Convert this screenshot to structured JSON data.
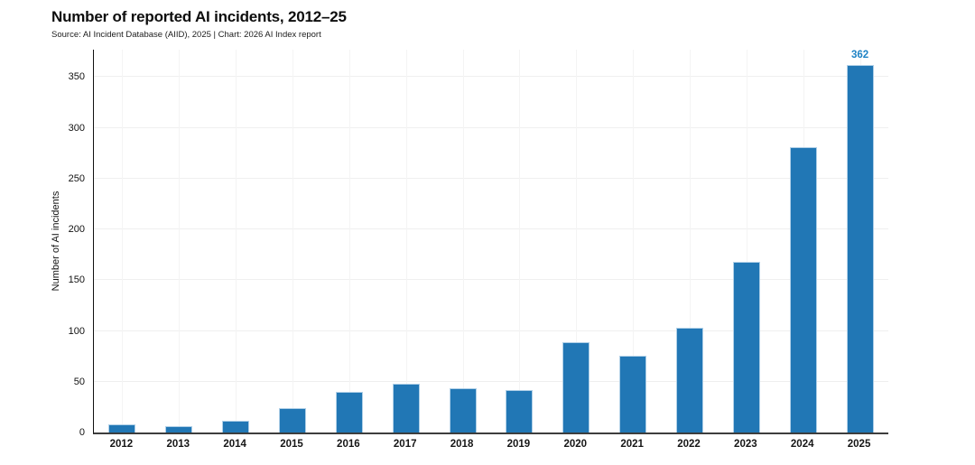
{
  "chart_data": {
    "type": "bar",
    "title": "Number of reported AI incidents, 2012–25",
    "subtitle": "Source: AI Incident Database (AIID), 2025 | Chart: 2026 AI Index report",
    "ylabel": "Number of AI incidents",
    "xlabel": "",
    "categories": [
      "2012",
      "2013",
      "2014",
      "2015",
      "2016",
      "2017",
      "2018",
      "2019",
      "2020",
      "2021",
      "2022",
      "2023",
      "2024",
      "2025"
    ],
    "values": [
      8,
      6,
      12,
      24,
      40,
      48,
      44,
      42,
      89,
      76,
      103,
      168,
      281,
      362
    ],
    "yticks": [
      0,
      50,
      100,
      150,
      200,
      250,
      300,
      350
    ],
    "ylim": [
      0,
      377
    ],
    "grid": "light horizontal gridlines at y ticks, faint vertical gridline at each category center",
    "legend": "none",
    "bar_color": "#2177b5",
    "bar_edge_color": "#c8deF0",
    "value_label": {
      "category": "2025",
      "text": "362",
      "color": "#1e83c5"
    }
  }
}
